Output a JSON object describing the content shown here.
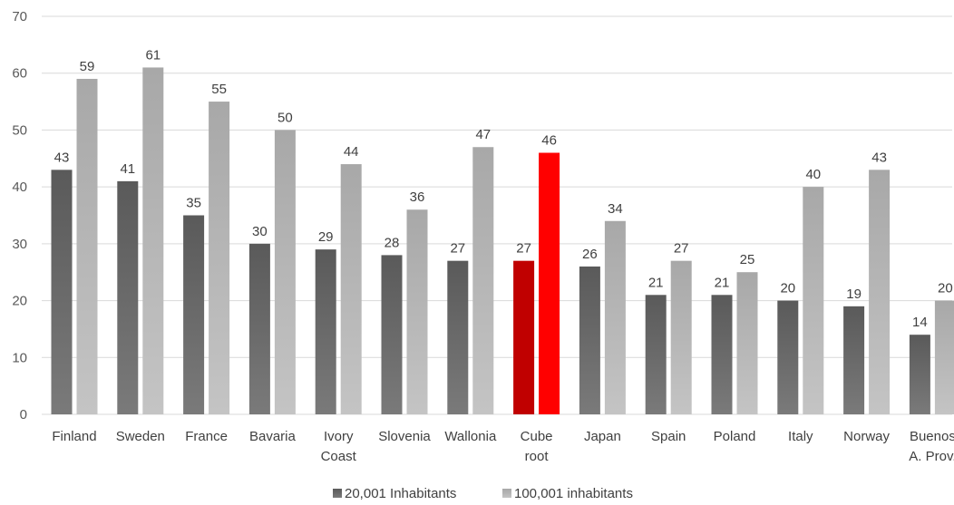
{
  "chart_data": {
    "type": "bar",
    "title": "",
    "xlabel": "",
    "ylabel": "",
    "ylim": [
      0,
      70
    ],
    "yticks": [
      0,
      10,
      20,
      30,
      40,
      50,
      60,
      70
    ],
    "grid": true,
    "legend_position": "bottom",
    "categories": [
      [
        "Finland"
      ],
      [
        "Sweden"
      ],
      [
        "France"
      ],
      [
        "Bavaria"
      ],
      [
        "Ivory",
        "Coast"
      ],
      [
        "Slovenia"
      ],
      [
        "Wallonia"
      ],
      [
        "Cube",
        "root"
      ],
      [
        "Japan"
      ],
      [
        "Spain"
      ],
      [
        "Poland"
      ],
      [
        "Italy"
      ],
      [
        "Norway"
      ],
      [
        "Buenos",
        "A. Prov."
      ]
    ],
    "series": [
      {
        "name": "20,001 Inhabitants",
        "color": "#595959",
        "values": [
          43,
          41,
          35,
          30,
          29,
          28,
          27,
          27,
          26,
          21,
          21,
          20,
          19,
          14
        ]
      },
      {
        "name": "100,001 inhabitants",
        "color": "#a6a6a6",
        "values": [
          59,
          61,
          55,
          50,
          44,
          36,
          47,
          46,
          34,
          27,
          25,
          40,
          43,
          20
        ]
      }
    ],
    "highlight": {
      "category_index": 7,
      "colors": [
        "#c00000",
        "#ff0000"
      ]
    }
  }
}
